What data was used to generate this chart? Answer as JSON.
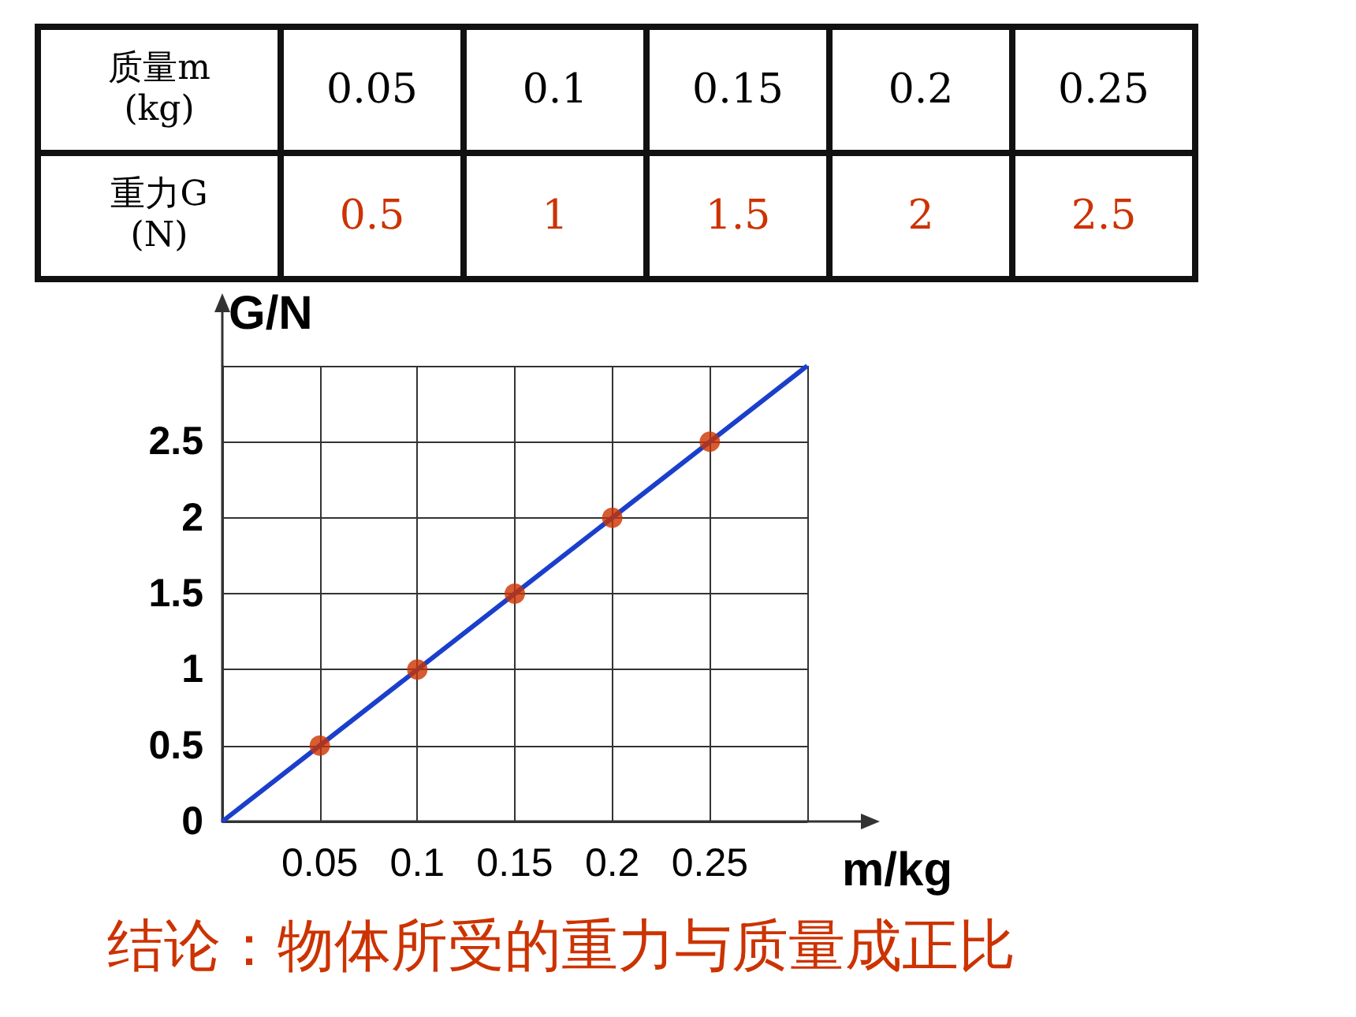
{
  "chart_data": {
    "type": "scatter",
    "xlabel": "m/kg",
    "ylabel": "G/N",
    "annotations": [
      "质量m\n(kg)",
      "0.05",
      "0.1",
      "0.15",
      "0.2",
      "0.25",
      "重力G\n(N)",
      "0.5",
      "1",
      "1.5",
      "2",
      "2.5",
      "结论：物体所受的重力与质量成正比"
    ],
    "series": [
      {
        "color": "#cc3300",
        "marker": "circle",
        "x": [
          0.05,
          0.1,
          0.15,
          0.2,
          0.25
        ],
        "values": [
          0.5,
          1,
          1.5,
          2,
          2.5
        ]
      },
      {
        "type": "line",
        "color": "#1a3fcc",
        "marker": "none",
        "x": [
          0,
          0.3
        ],
        "values": [
          0,
          3
        ]
      }
    ],
    "xlim": [
      0,
      0.3
    ],
    "ylim": [
      0,
      3
    ],
    "xticks": [
      {
        "value": 0,
        "label": null
      },
      0.05,
      0.1,
      0.15,
      0.2,
      0.25,
      {
        "value": 0.3,
        "label": null
      }
    ],
    "yticks": [
      0,
      0.5,
      1,
      1.5,
      2,
      2.5,
      {
        "value": 3,
        "label": null
      }
    ],
    "grid": true
  }
}
